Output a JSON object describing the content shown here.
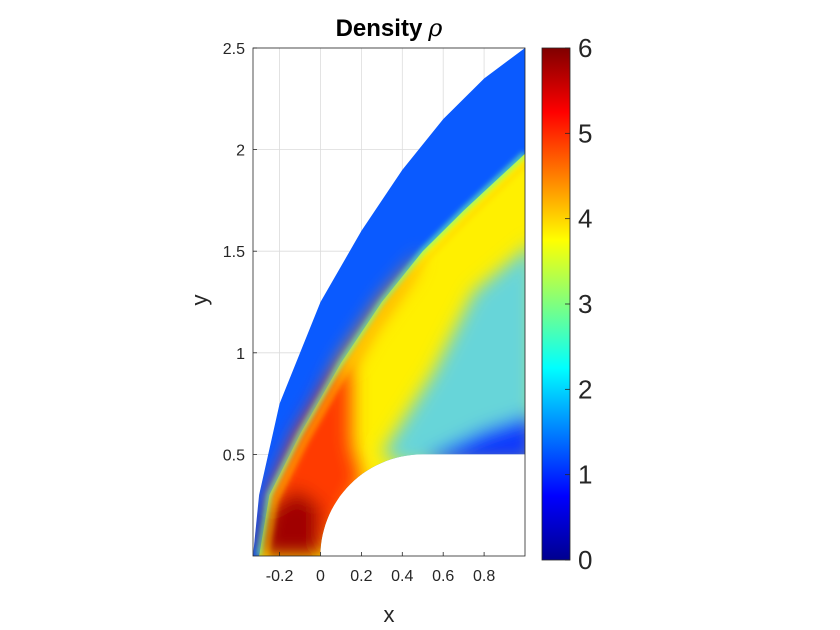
{
  "chart_data": {
    "type": "heatmap",
    "title": "Density",
    "title_symbol": "ρ",
    "xlabel": "x",
    "ylabel": "y",
    "xlim": [
      -0.33,
      1.0
    ],
    "ylim": [
      0.0,
      2.5
    ],
    "xticks": [
      -0.2,
      0,
      0.2,
      0.4,
      0.6,
      0.8
    ],
    "xtick_labels": [
      "-0.2",
      "0",
      "0.2",
      "0.4",
      "0.6",
      "0.8"
    ],
    "yticks": [
      0.5,
      1,
      1.5,
      2,
      2.5
    ],
    "ytick_labels": [
      "0.5",
      "1",
      "1.5",
      "2",
      "2.5"
    ],
    "grid": true,
    "colormap": "jet",
    "clim": [
      0,
      6
    ],
    "colorbar_ticks": [
      0,
      1,
      2,
      3,
      4,
      5,
      6
    ],
    "colorbar_tick_labels": [
      "0",
      "1",
      "2",
      "3",
      "4",
      "5",
      "6"
    ],
    "colorbar_position": "right",
    "body": {
      "shape": "cylinder-with-flat-afterbody",
      "radius": 0.5,
      "center": [
        0.5,
        0.0
      ]
    },
    "shock_standoff_x": -0.3,
    "domain_outer_boundary": [
      {
        "x": -0.33,
        "y": 0.0
      },
      {
        "x": -0.3,
        "y": 0.3
      },
      {
        "x": -0.2,
        "y": 0.75
      },
      {
        "x": 0.0,
        "y": 1.25
      },
      {
        "x": 0.2,
        "y": 1.6
      },
      {
        "x": 0.4,
        "y": 1.9
      },
      {
        "x": 0.6,
        "y": 2.15
      },
      {
        "x": 0.8,
        "y": 2.35
      },
      {
        "x": 1.0,
        "y": 2.5
      }
    ],
    "shock_line": [
      {
        "x": -0.3,
        "y": 0.0
      },
      {
        "x": -0.25,
        "y": 0.3
      },
      {
        "x": -0.1,
        "y": 0.6
      },
      {
        "x": 0.1,
        "y": 0.95
      },
      {
        "x": 0.3,
        "y": 1.25
      },
      {
        "x": 0.5,
        "y": 1.5
      },
      {
        "x": 0.7,
        "y": 1.7
      },
      {
        "x": 1.0,
        "y": 1.98
      }
    ],
    "freestream_density": 1.0,
    "stagnation_density": 5.9
  }
}
